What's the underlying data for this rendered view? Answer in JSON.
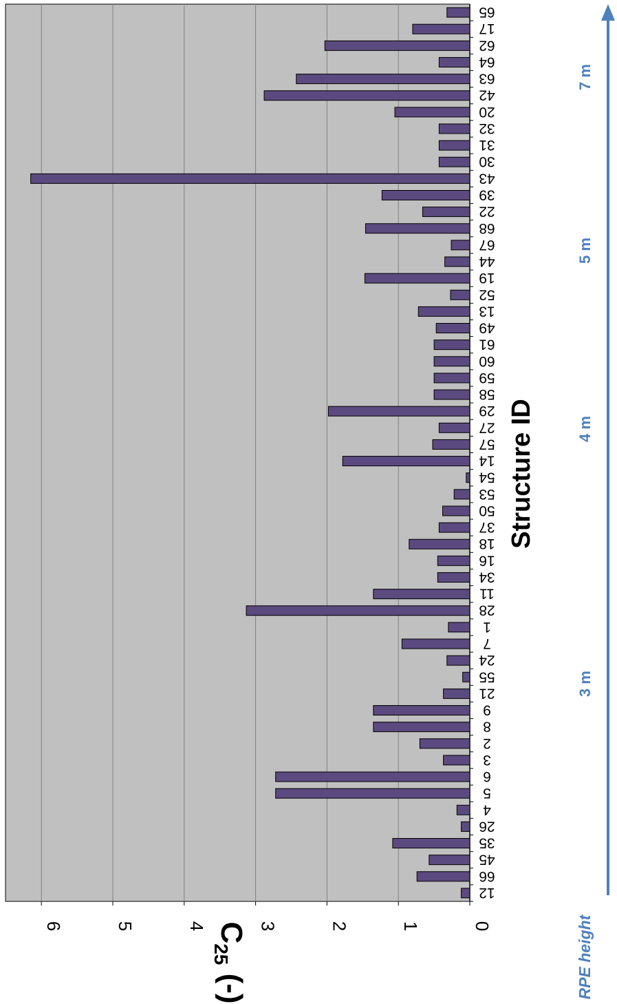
{
  "chart_data": {
    "type": "bar",
    "orientation": "horizontal-bars, figure rotated",
    "xlabel": "Structure ID",
    "ylabel_main": "C",
    "ylabel_sub": "25",
    "ylabel_suffix": " (-)",
    "ylim": [
      0,
      6.3
    ],
    "yticks": [
      "0",
      "1",
      "2",
      "3",
      "4",
      "5",
      "6"
    ],
    "grid": true,
    "categories": [
      "12",
      "66",
      "45",
      "35",
      "26",
      "4",
      "5",
      "6",
      "3",
      "2",
      "8",
      "9",
      "21",
      "55",
      "24",
      "7",
      "1",
      "28",
      "11",
      "34",
      "16",
      "18",
      "37",
      "50",
      "53",
      "54",
      "14",
      "57",
      "27",
      "29",
      "58",
      "59",
      "60",
      "61",
      "49",
      "13",
      "52",
      "19",
      "44",
      "67",
      "68",
      "22",
      "39",
      "43",
      "30",
      "31",
      "32",
      "20",
      "42",
      "63",
      "64",
      "62",
      "17",
      "65"
    ],
    "values": [
      0.12,
      0.74,
      0.57,
      1.08,
      0.12,
      0.18,
      2.72,
      2.72,
      0.37,
      0.7,
      1.35,
      1.35,
      0.37,
      0.1,
      0.32,
      0.95,
      0.3,
      3.13,
      1.35,
      0.45,
      0.45,
      0.85,
      0.43,
      0.38,
      0.22,
      0.05,
      1.78,
      0.52,
      0.43,
      1.98,
      0.5,
      0.5,
      0.5,
      0.5,
      0.47,
      0.72,
      0.27,
      1.47,
      0.35,
      0.26,
      1.46,
      0.66,
      1.23,
      6.15,
      0.43,
      0.43,
      0.43,
      1.05,
      2.88,
      2.43,
      0.43,
      2.03,
      0.8,
      0.32
    ]
  },
  "colors": {
    "bar_fill": "#5b4a7f",
    "plot_bg": "#c0c0c0",
    "gridline": "#808080",
    "arrow": "#4e80bd"
  },
  "rpe_axis": {
    "label": "RPE height",
    "markers": [
      "3 m",
      "4 m",
      "5 m",
      "7 m"
    ]
  }
}
